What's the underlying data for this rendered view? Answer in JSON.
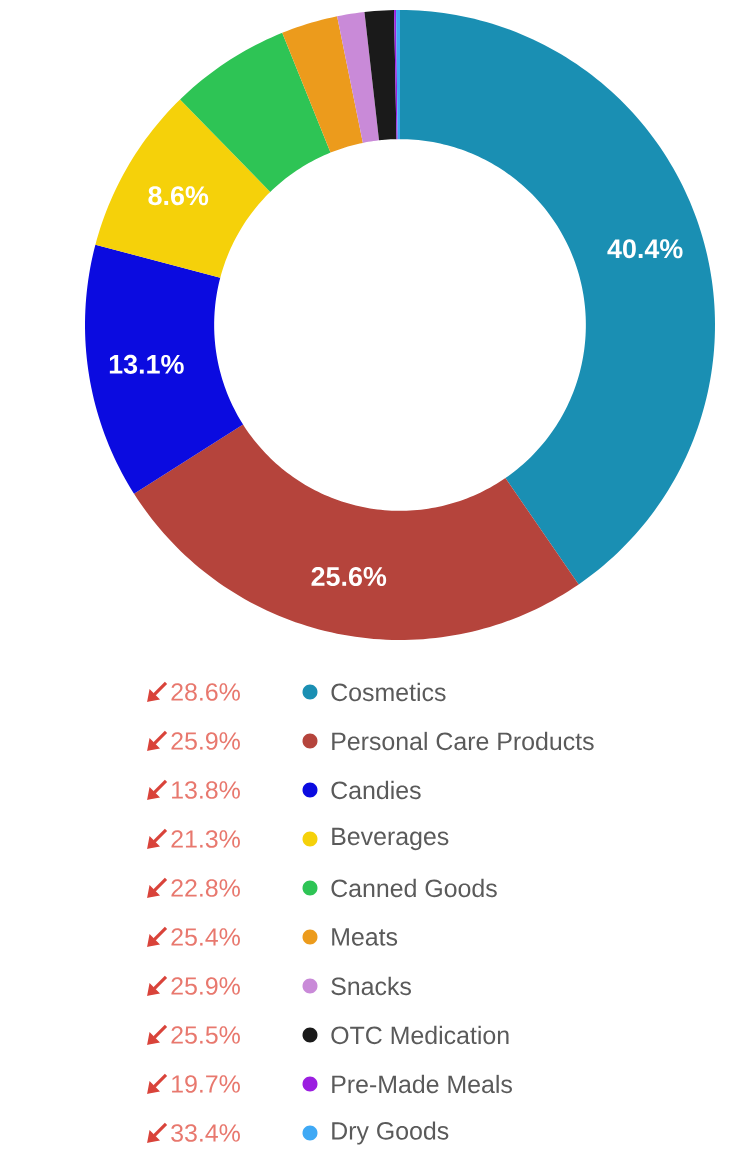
{
  "chart_data": {
    "type": "donut",
    "categories": [
      "Cosmetics",
      "Personal Care Products",
      "Candies",
      "Beverages",
      "Canned Goods",
      "Meats",
      "Snacks",
      "OTC Medication",
      "Pre-Made Meals",
      "Dry Goods"
    ],
    "values": [
      40.4,
      25.6,
      13.1,
      8.6,
      6.2,
      2.9,
      1.4,
      1.5,
      0.1,
      0.2
    ],
    "colors": [
      "#1a8fb3",
      "#b5443c",
      "#0b0be0",
      "#f5d10a",
      "#2ec455",
      "#ec9b1c",
      "#c98ad8",
      "#1a1a1a",
      "#9b1ee0",
      "#3fa9f5"
    ],
    "value_labels": [
      "40.4%",
      "25.6%",
      "13.1%",
      "8.6%",
      null,
      null,
      null,
      null,
      null,
      null
    ],
    "legend": "bottom",
    "annotations": [
      "28.6%",
      "25.9%",
      "13.8%",
      "21.3%",
      "22.8%",
      "25.4%",
      "25.9%",
      "25.5%",
      "19.7%",
      "33.4%"
    ]
  }
}
